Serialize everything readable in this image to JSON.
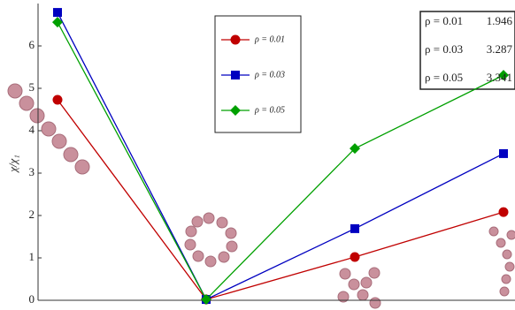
{
  "chart_data": {
    "type": "line",
    "y_label": "χ/χ₁",
    "categories": [
      null,
      null,
      null,
      null
    ],
    "series": [
      {
        "name": "ρ = 0.01",
        "color": "#c00000",
        "marker": "circle",
        "values": [
          4.73,
          0.02,
          1.02,
          2.08
        ]
      },
      {
        "name": "ρ = 0.03",
        "color": "#0000c0",
        "marker": "square",
        "values": [
          6.79,
          0.02,
          1.69,
          3.46
        ]
      },
      {
        "name": "ρ = 0.05",
        "color": "#00a000",
        "marker": "diamond",
        "values": [
          6.56,
          0.02,
          3.58,
          5.31
        ]
      }
    ],
    "ylim": [
      0,
      7
    ],
    "yticks": [
      0,
      1,
      2,
      3,
      4,
      5,
      6
    ],
    "table": {
      "rows": [
        [
          "ρ = 0.01",
          "1.946"
        ],
        [
          "ρ = 0.03",
          "3.287"
        ],
        [
          "ρ = 0.05",
          "3.341"
        ]
      ]
    }
  }
}
